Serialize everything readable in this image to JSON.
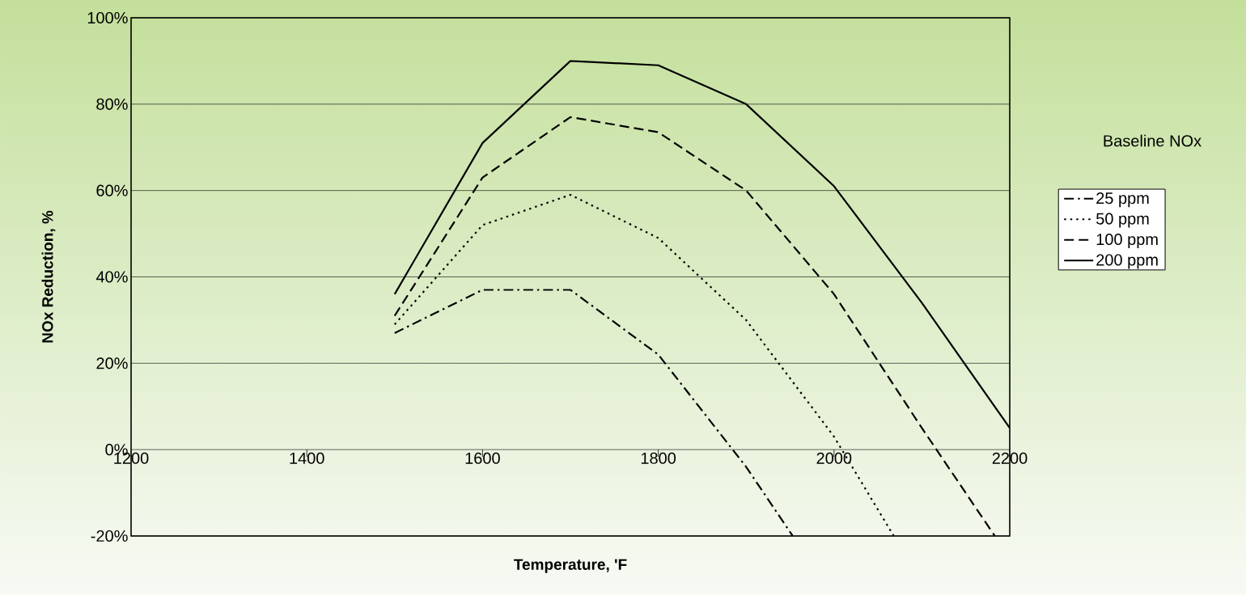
{
  "chart_data": {
    "type": "line",
    "xlabel": "Temperature, 'F",
    "ylabel": "NOx Reduction, %",
    "legend_title": "Baseline NOx",
    "x": [
      1500,
      1600,
      1700,
      1800,
      1900,
      2000,
      2100,
      2200
    ],
    "series": [
      {
        "name": "25 ppm",
        "color": "#000000",
        "line_style": "dashdot",
        "x": [
          1500,
          1600,
          1700,
          1800,
          1900,
          1953
        ],
        "values": [
          27,
          37,
          37,
          22,
          -4,
          -20
        ]
      },
      {
        "name": "50 ppm",
        "color": "#000000",
        "line_style": "dotted",
        "x": [
          1500,
          1600,
          1700,
          1800,
          1900,
          2000,
          2068
        ],
        "values": [
          29,
          52,
          59,
          49,
          30,
          3,
          -20
        ]
      },
      {
        "name": "100 ppm",
        "color": "#000000",
        "line_style": "dashed",
        "x": [
          1500,
          1600,
          1700,
          1800,
          1900,
          2000,
          2100,
          2183
        ],
        "values": [
          31,
          63,
          77,
          73.5,
          60,
          36,
          5,
          -20
        ]
      },
      {
        "name": "200 ppm",
        "color": "#000000",
        "line_style": "solid",
        "values": [
          36,
          71,
          90,
          89,
          80,
          61,
          34,
          5
        ]
      }
    ],
    "xlim": [
      1200,
      2200
    ],
    "ylim": [
      -20,
      100
    ],
    "xticks": [
      1200,
      1400,
      1600,
      1800,
      2000,
      2200
    ],
    "yticks": [
      {
        "value": -20,
        "label": "-20%"
      },
      {
        "value": 0,
        "label": "0%"
      },
      {
        "value": 20,
        "label": "20%"
      },
      {
        "value": 40,
        "label": "40%"
      },
      {
        "value": 60,
        "label": "60%"
      },
      {
        "value": 80,
        "label": "80%"
      },
      {
        "value": 100,
        "label": "100%"
      }
    ],
    "grid": "y",
    "legend": "right",
    "marker": "none"
  }
}
